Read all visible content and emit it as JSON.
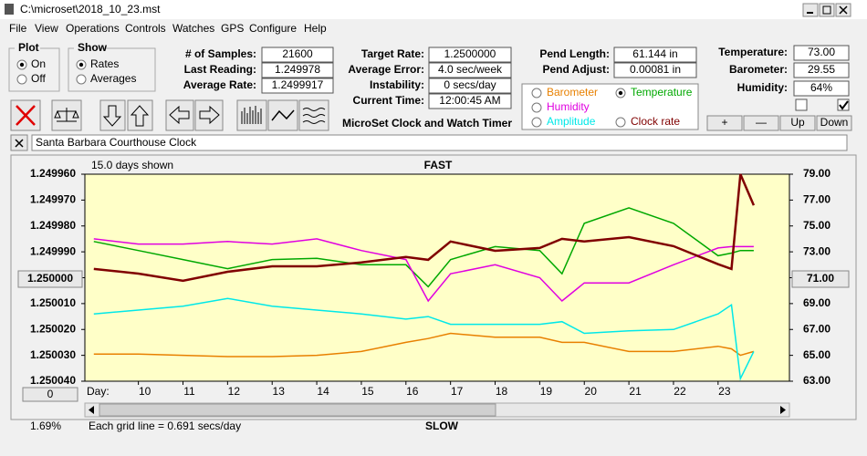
{
  "window": {
    "title": "C:\\microset\\2018_10_23.mst"
  },
  "menu": [
    "File",
    "View",
    "Operations",
    "Controls",
    "Watches",
    "GPS",
    "Configure",
    "Help"
  ],
  "plot_group": {
    "title": "Plot",
    "options": [
      "On",
      "Off"
    ],
    "selected": 0
  },
  "show_group": {
    "title": "Show",
    "options": [
      "Rates",
      "Averages"
    ],
    "selected": 0
  },
  "fields": [
    {
      "label": "# of Samples:",
      "value": "21600"
    },
    {
      "label": "Last Reading:",
      "value": "1.249978"
    },
    {
      "label": "Average Rate:",
      "value": "1.2499917"
    },
    {
      "label": "Target Rate:",
      "value": "1.2500000"
    },
    {
      "label": "Average Error:",
      "value": "4.0 sec/week"
    },
    {
      "label": "Instability:",
      "value": "0 secs/day"
    },
    {
      "label": "Current Time:",
      "value": "12:00:45 AM"
    },
    {
      "label": "Pend Length:",
      "value": "61.144 in"
    },
    {
      "label": "Pend Adjust:",
      "value": "0.00081 in"
    },
    {
      "label": "Temperature:",
      "value": "73.00"
    },
    {
      "label": "Barometer:",
      "value": "29.55"
    },
    {
      "label": "Humidity:",
      "value": "64%"
    }
  ],
  "app_title": "MicroSet Clock and Watch Timer",
  "buttons": [
    "+",
    "—",
    "Up",
    "Down"
  ],
  "clock_name": "Santa Barbara Courthouse Clock",
  "chart_data": {
    "type": "line",
    "days_shown": "15.0 days shown",
    "top_label": "FAST",
    "bottom_label": "SLOW",
    "grid_note": "Each grid line = 0.691 secs/day",
    "percent": "1.69%",
    "left_button": "0",
    "center_button": "1.250000",
    "right_button": "71.00",
    "x_label": "Day:",
    "x": [
      9,
      10,
      11,
      12,
      13,
      14,
      15,
      16,
      16.5,
      17,
      18,
      19,
      19.5,
      20,
      21,
      22,
      23,
      23.3,
      23.5,
      23.8
    ],
    "xlim": [
      8.8,
      24.6
    ],
    "xticks": [
      10,
      11,
      12,
      13,
      14,
      15,
      16,
      17,
      18,
      19,
      20,
      21,
      22,
      23
    ],
    "ylim": [
      1.25004,
      1.24996
    ],
    "yticks": [
      {
        "value": 1.24996,
        "label": "1.249960"
      },
      {
        "value": 1.24997,
        "label": "1.249970"
      },
      {
        "value": 1.24998,
        "label": "1.249980"
      },
      {
        "value": 1.24999,
        "label": "1.249990"
      },
      {
        "value": 1.25,
        "label": "1.250000"
      },
      {
        "value": 1.25001,
        "label": "1.250010"
      },
      {
        "value": 1.25002,
        "label": "1.250020"
      },
      {
        "value": 1.25003,
        "label": "1.250030"
      },
      {
        "value": 1.25004,
        "label": "1.250040"
      }
    ],
    "y2lim": [
      63,
      79
    ],
    "y2ticks": [
      {
        "value": 79,
        "label": "79.00"
      },
      {
        "value": 77,
        "label": "77.00"
      },
      {
        "value": 75,
        "label": "75.00"
      },
      {
        "value": 73,
        "label": "73.00"
      },
      {
        "value": 71,
        "label": "71.00"
      },
      {
        "value": 69,
        "label": "69.00"
      },
      {
        "value": 67,
        "label": "67.00"
      },
      {
        "value": 65,
        "label": "65.00"
      },
      {
        "value": 63,
        "label": "63.00"
      }
    ],
    "legend_selected": 1,
    "series": [
      {
        "name": "Barometer",
        "color": "#e88000",
        "axis": "y2",
        "values": [
          65.1,
          65.1,
          65.0,
          64.9,
          64.9,
          65.0,
          65.3,
          66.0,
          66.3,
          66.7,
          66.4,
          66.4,
          66.0,
          66.0,
          65.3,
          65.3,
          65.7,
          65.5,
          65.0,
          65.3
        ]
      },
      {
        "name": "Temperature",
        "color": "#00a800",
        "axis": "y2",
        "values": [
          73.8,
          73.1,
          72.4,
          71.7,
          72.4,
          72.5,
          72.0,
          72.0,
          70.3,
          72.4,
          73.4,
          73.1,
          71.3,
          75.2,
          76.4,
          75.2,
          72.7,
          72.9,
          73.1,
          73.1
        ]
      },
      {
        "name": "Humidity",
        "color": "#e000e0",
        "axis": "y2",
        "values": [
          74.0,
          73.6,
          73.6,
          73.8,
          73.6,
          74.0,
          73.1,
          72.4,
          69.2,
          71.3,
          72.0,
          71.0,
          69.2,
          70.6,
          70.6,
          72.0,
          73.3,
          73.4,
          73.4,
          73.4
        ]
      },
      {
        "name": "Amplitude",
        "color": "#00e8e8",
        "axis": "y2",
        "values": [
          68.2,
          68.5,
          68.8,
          69.4,
          68.8,
          68.5,
          68.2,
          67.8,
          68.0,
          67.4,
          67.4,
          67.4,
          67.6,
          66.7,
          66.9,
          67.0,
          68.2,
          68.9,
          63.2,
          65.3
        ]
      },
      {
        "name": "Clock rate",
        "color": "#800000",
        "values": [
          1.2499966,
          1.2499984,
          1.2500012,
          1.2499977,
          1.2499956,
          1.2499956,
          1.2499941,
          1.249992,
          1.2499931,
          1.249986,
          1.2499896,
          1.2499885,
          1.249985,
          1.249986,
          1.2499843,
          1.2499878,
          1.2499948,
          1.2499966,
          1.24996,
          1.249972
        ]
      }
    ]
  }
}
